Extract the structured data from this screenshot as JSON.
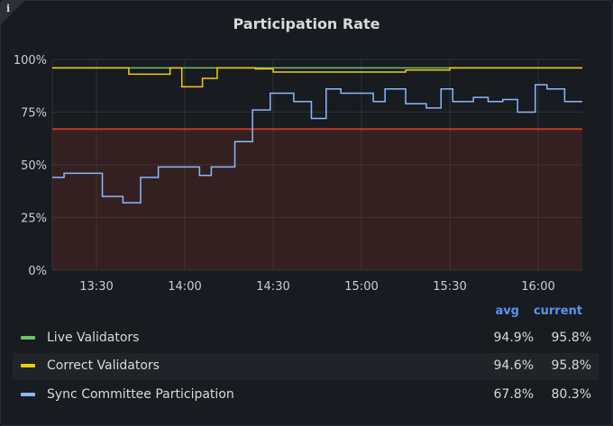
{
  "panel": {
    "title": "Participation Rate",
    "info_icon": "info-icon"
  },
  "legend": {
    "avg_header": "avg",
    "current_header": "current",
    "rows": [
      {
        "name": "Live Validators",
        "avg": "94.9%",
        "current": "95.8%",
        "color": "#73bf69"
      },
      {
        "name": "Correct Validators",
        "avg": "94.6%",
        "current": "95.8%",
        "color": "#f2cc0c"
      },
      {
        "name": "Sync Committee Participation",
        "avg": "67.8%",
        "current": "80.3%",
        "color": "#8ab8ff"
      }
    ]
  },
  "chart_data": {
    "type": "line",
    "title": "Participation Rate",
    "xlabel": "",
    "ylabel": "",
    "x_ticks": [
      "13:30",
      "14:00",
      "14:30",
      "15:00",
      "15:30",
      "16:00"
    ],
    "y_ticks": [
      "0%",
      "25%",
      "50%",
      "75%",
      "100%"
    ],
    "ylim": [
      0,
      100
    ],
    "xlim": [
      "13:15",
      "16:15"
    ],
    "grid": true,
    "threshold": {
      "value": 67,
      "color": "#e0452f",
      "fill": "below"
    },
    "series": [
      {
        "name": "Live Validators",
        "color": "#73bf69",
        "x": [
          "13:15",
          "16:15"
        ],
        "y": [
          96,
          96
        ]
      },
      {
        "name": "Correct Validators",
        "color": "#f2cc0c",
        "step": true,
        "x": [
          "13:15",
          "13:41",
          "13:55",
          "13:59",
          "14:06",
          "14:11",
          "14:24",
          "14:30",
          "14:45",
          "15:00",
          "15:15",
          "15:30",
          "15:45",
          "16:00",
          "16:15"
        ],
        "y": [
          96,
          93,
          96,
          87,
          91,
          96,
          95.5,
          94,
          94,
          94,
          95,
          96,
          96,
          96,
          96
        ]
      },
      {
        "name": "Sync Committee Participation",
        "color": "#8ab8ff",
        "step": true,
        "x": [
          "13:15",
          "13:19",
          "13:32",
          "13:39",
          "13:45",
          "13:51",
          "14:05",
          "14:09",
          "14:17",
          "14:23",
          "14:29",
          "14:37",
          "14:43",
          "14:48",
          "14:53",
          "15:04",
          "15:08",
          "15:15",
          "15:22",
          "15:27",
          "15:31",
          "15:38",
          "15:43",
          "15:48",
          "15:53",
          "15:59",
          "16:03",
          "16:09",
          "16:14",
          "16:15"
        ],
        "y": [
          44,
          46,
          35,
          32,
          44,
          49,
          45,
          49,
          61,
          76,
          84,
          80,
          72,
          86,
          84,
          80,
          86,
          79,
          77,
          86,
          80,
          82,
          80,
          81,
          75,
          88,
          86,
          80,
          80,
          80
        ]
      }
    ]
  }
}
